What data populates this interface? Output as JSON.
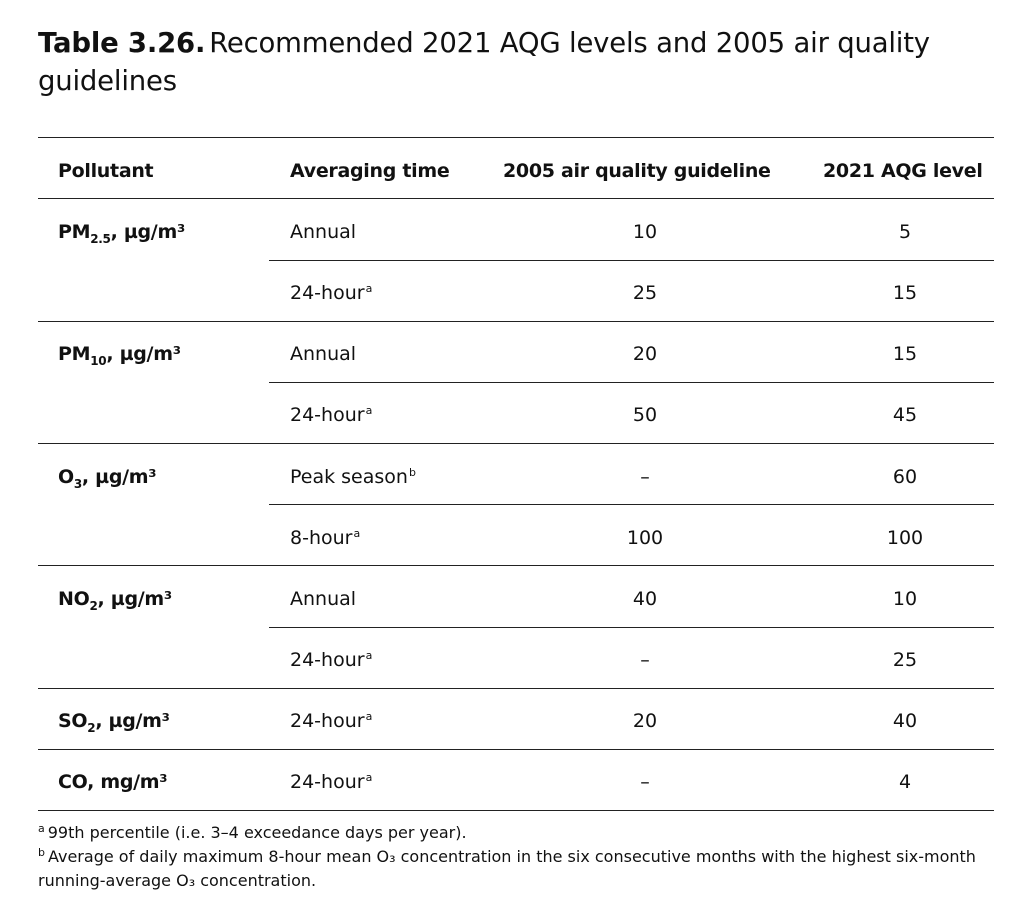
{
  "title": {
    "number": "Table 3.26.",
    "line1": "Recommended 2021 AQG levels and 2005 air quality",
    "line2": "guidelines"
  },
  "headers": {
    "pollutant": "Pollutant",
    "averaging": "Averaging time",
    "aqg2005": "2005 air quality guideline",
    "aqg2021": "2021 AQG level"
  },
  "pollutants": [
    {
      "base": "PM",
      "sub": "2.5",
      "unit": ", µg/m³"
    },
    {
      "base": "PM",
      "sub": "10",
      "unit": ", µg/m³"
    },
    {
      "base": "O",
      "sub": "3",
      "unit": ", µg/m³"
    },
    {
      "base": "NO",
      "sub": "2",
      "unit": ", µg/m³"
    },
    {
      "base": "SO",
      "sub": "2",
      "unit": ", µg/m³"
    },
    {
      "base": "CO",
      "sub": "",
      "unit": ", mg/m³"
    }
  ],
  "rows": [
    {
      "avg": "Annual",
      "sup": "",
      "v2005": "10",
      "v2021": "5"
    },
    {
      "avg": "24-hour",
      "sup": "a",
      "v2005": "25",
      "v2021": "15"
    },
    {
      "avg": "Annual",
      "sup": "",
      "v2005": "20",
      "v2021": "15"
    },
    {
      "avg": "24-hour",
      "sup": "a",
      "v2005": "50",
      "v2021": "45"
    },
    {
      "avg": "Peak season",
      "sup": "b",
      "v2005": "–",
      "v2021": "60"
    },
    {
      "avg": "8-hour",
      "sup": "a",
      "v2005": "100",
      "v2021": "100"
    },
    {
      "avg": "Annual",
      "sup": "",
      "v2005": "40",
      "v2021": "10"
    },
    {
      "avg": "24-hour",
      "sup": "a",
      "v2005": "–",
      "v2021": "25"
    },
    {
      "avg": "24-hour",
      "sup": "a",
      "v2005": "20",
      "v2021": "40"
    },
    {
      "avg": "24-hour",
      "sup": "a",
      "v2005": "–",
      "v2021": "4"
    }
  ],
  "footnotes": {
    "a_mark": "a",
    "a_text": "99th percentile (i.e. 3–4 exceedance days per year).",
    "b_mark": "b",
    "b_line1": "Average of daily maximum 8-hour mean O₃ concentration in the six consecutive months with the highest six-month",
    "b_line2": "running-average O₃ concentration."
  }
}
